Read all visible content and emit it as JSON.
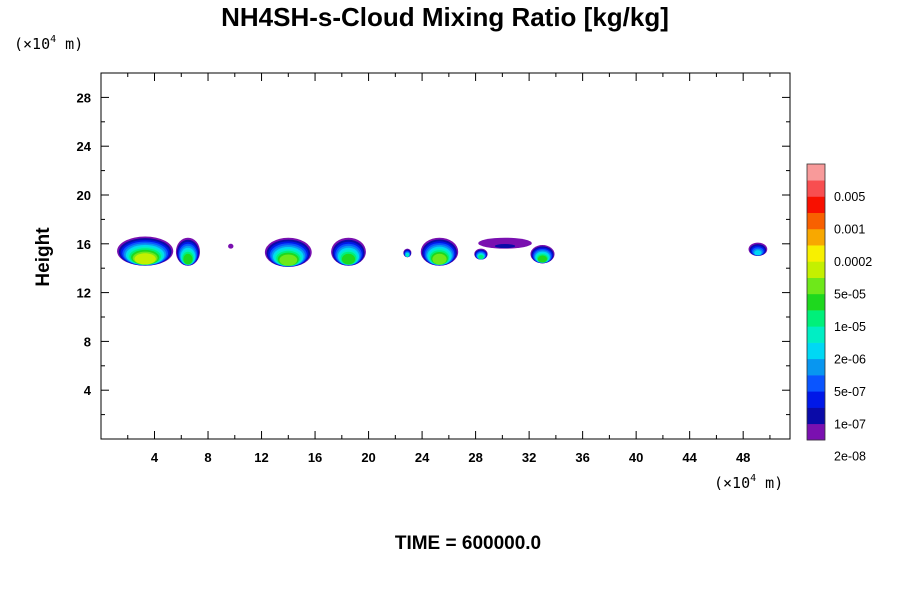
{
  "chart_data": {
    "type": "contour",
    "title": "NH4SH-s-Cloud Mixing Ratio [kg/kg]",
    "ylabel": "Height",
    "x_unit": "(×10",
    "x_unit_exp": "4",
    "x_unit_tail": " m)",
    "y_unit": "(×10",
    "y_unit_exp": "4",
    "y_unit_tail": " m)",
    "xlim": [
      0,
      51.5
    ],
    "ylim": [
      0,
      30
    ],
    "x_ticks": [
      4,
      8,
      12,
      16,
      20,
      24,
      28,
      32,
      36,
      40,
      44,
      48
    ],
    "y_ticks": [
      4,
      8,
      12,
      16,
      20,
      24,
      28
    ],
    "time_label": "TIME = 600000.0",
    "colorbar": {
      "tick_labels": [
        "0.005",
        "0.001",
        "0.0002",
        "5e-05",
        "1e-05",
        "2e-06",
        "5e-07",
        "1e-07",
        "2e-08"
      ],
      "colors_bottom_to_top": [
        "#7a10b0",
        "#0a0aa8",
        "#0018e8",
        "#0a55ff",
        "#0896f0",
        "#00d8f4",
        "#00eec4",
        "#00f07a",
        "#1ed81e",
        "#6ee81a",
        "#c4f000",
        "#f8f000",
        "#f8a800",
        "#f86000",
        "#f81000",
        "#f84e50",
        "#f89a9a"
      ]
    },
    "cloud_blobs": [
      {
        "x_center": 3.3,
        "width": 4.2,
        "y_bottom": 14.2,
        "y_top": 16.6,
        "peak_level": 10
      },
      {
        "x_center": 6.5,
        "width": 1.8,
        "y_bottom": 14.2,
        "y_top": 16.5,
        "peak_level": 8
      },
      {
        "x_center": 9.7,
        "width": 0.4,
        "y_bottom": 15.6,
        "y_top": 16.0,
        "peak_level": 0
      },
      {
        "x_center": 14.0,
        "width": 3.5,
        "y_bottom": 14.1,
        "y_top": 16.5,
        "peak_level": 9
      },
      {
        "x_center": 18.5,
        "width": 2.6,
        "y_bottom": 14.2,
        "y_top": 16.5,
        "peak_level": 8
      },
      {
        "x_center": 22.9,
        "width": 0.6,
        "y_bottom": 14.9,
        "y_top": 15.6,
        "peak_level": 6
      },
      {
        "x_center": 25.3,
        "width": 2.8,
        "y_bottom": 14.2,
        "y_top": 16.5,
        "peak_level": 9
      },
      {
        "x_center": 28.4,
        "width": 1.0,
        "y_bottom": 14.7,
        "y_top": 15.6,
        "peak_level": 7
      },
      {
        "x_center": 30.2,
        "width": 4.0,
        "y_bottom": 15.6,
        "y_top": 16.5,
        "peak_level": 1
      },
      {
        "x_center": 33.0,
        "width": 1.8,
        "y_bottom": 14.4,
        "y_top": 15.9,
        "peak_level": 8
      },
      {
        "x_center": 49.1,
        "width": 1.4,
        "y_bottom": 15.0,
        "y_top": 16.1,
        "peak_level": 5
      }
    ]
  }
}
